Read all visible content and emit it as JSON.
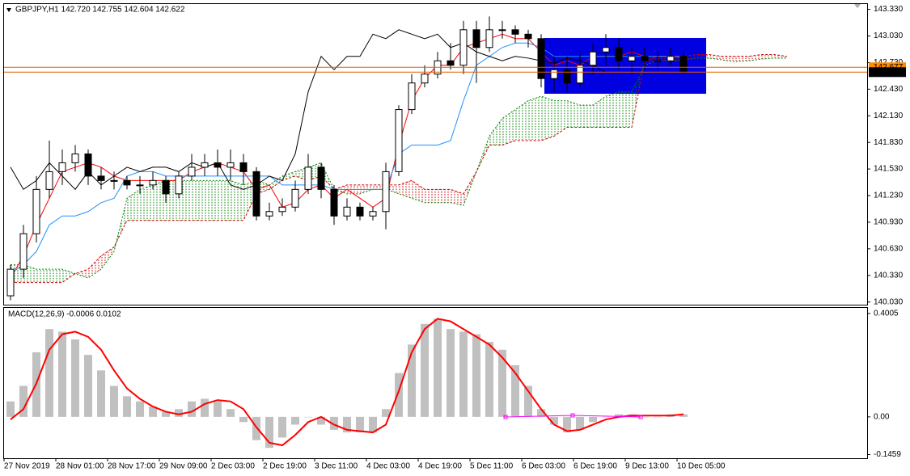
{
  "chart_data": [
    {
      "type": "candlestick",
      "title": "GBPJPY,H1  142.720 142.755 142.604 142.622",
      "categories": [
        "27 Nov 2019",
        null,
        null,
        null,
        "28 Nov 01:00",
        null,
        null,
        null,
        "28 Nov 17:00",
        null,
        null,
        null,
        "29 Nov 09:00",
        null,
        null,
        null,
        "2 Dec 03:00",
        null,
        null,
        null,
        "2 Dec 19:00",
        null,
        null,
        null,
        "3 Dec 11:00",
        null,
        null,
        null,
        "4 Dec 03:00",
        null,
        null,
        null,
        "4 Dec 19:00",
        null,
        null,
        null,
        "5 Dec 11:00",
        null,
        null,
        null,
        "6 Dec 03:00",
        null,
        null,
        null,
        "6 Dec 19:00",
        null,
        null,
        null,
        "9 Dec 13:00",
        null,
        null,
        null,
        "10 Dec 05:00",
        null,
        null,
        null,
        null,
        null,
        null,
        null,
        null
      ],
      "open": [
        140.1,
        140.4,
        140.8,
        141.3,
        141.5,
        141.6,
        141.7,
        141.45,
        141.4,
        141.4,
        141.35,
        141.35,
        141.4,
        141.25,
        141.45,
        141.55,
        141.6,
        141.55,
        141.6,
        141.5,
        141.0,
        141.05,
        141.1,
        141.3,
        141.55,
        141.3,
        141.0,
        141.1,
        141.0,
        141.05,
        141.5,
        142.2,
        142.5,
        142.6,
        142.75,
        142.7,
        143.1,
        142.9,
        143.1,
        143.1,
        143.05,
        143.0,
        142.55,
        142.65,
        142.5,
        142.7,
        142.85,
        142.9,
        142.75,
        142.8,
        142.75,
        142.75,
        142.8,
        null,
        null,
        null,
        null,
        null,
        null,
        null,
        null
      ],
      "high": [
        140.45,
        140.9,
        141.45,
        141.85,
        141.75,
        141.8,
        141.75,
        141.55,
        141.5,
        141.45,
        141.45,
        141.5,
        141.45,
        141.5,
        141.7,
        141.7,
        141.75,
        141.75,
        141.7,
        141.55,
        141.15,
        141.2,
        141.4,
        141.7,
        141.6,
        141.35,
        141.2,
        141.15,
        141.1,
        141.6,
        142.25,
        142.6,
        142.7,
        142.85,
        142.95,
        143.2,
        143.2,
        143.25,
        143.2,
        143.15,
        143.1,
        143.05,
        142.8,
        142.8,
        142.85,
        142.95,
        143.05,
        143.0,
        142.9,
        142.9,
        142.85,
        142.9,
        142.85,
        null,
        null,
        null,
        null,
        null,
        null,
        null,
        null
      ],
      "low": [
        140.05,
        140.3,
        140.7,
        141.2,
        141.35,
        141.5,
        141.35,
        141.3,
        141.3,
        141.3,
        141.25,
        141.3,
        141.15,
        141.2,
        141.4,
        141.45,
        141.45,
        141.4,
        141.35,
        140.95,
        140.95,
        141.0,
        141.05,
        141.25,
        141.2,
        140.9,
        140.95,
        140.95,
        140.95,
        140.85,
        141.45,
        142.15,
        142.45,
        142.55,
        142.65,
        142.6,
        142.5,
        142.85,
        143.0,
        142.95,
        142.9,
        142.45,
        142.4,
        142.4,
        142.45,
        142.6,
        142.7,
        142.65,
        142.6,
        142.65,
        142.65,
        142.7,
        142.6,
        null,
        null,
        null,
        null,
        null,
        null,
        null,
        null
      ],
      "close": [
        140.4,
        140.8,
        141.3,
        141.5,
        141.6,
        141.7,
        141.45,
        141.4,
        141.4,
        141.35,
        141.35,
        141.4,
        141.25,
        141.45,
        141.55,
        141.6,
        141.55,
        141.6,
        141.5,
        141.0,
        141.05,
        141.1,
        141.3,
        141.55,
        141.3,
        141.0,
        141.1,
        141.0,
        141.05,
        141.5,
        142.2,
        142.5,
        142.6,
        142.75,
        142.7,
        143.1,
        142.9,
        143.1,
        143.1,
        143.05,
        143.0,
        142.55,
        142.65,
        142.5,
        142.7,
        142.85,
        142.9,
        142.75,
        142.8,
        142.75,
        142.75,
        142.8,
        142.622,
        null,
        null,
        null,
        null,
        null,
        null,
        null,
        null
      ],
      "series": [
        {
          "color": "#ff0000",
          "values": [
            140.3,
            140.55,
            140.9,
            141.2,
            141.5,
            141.55,
            141.6,
            141.55,
            141.45,
            141.4,
            141.4,
            141.4,
            141.4,
            141.4,
            141.5,
            141.55,
            141.6,
            141.55,
            141.5,
            141.3,
            141.35,
            141.1,
            141.15,
            141.3,
            141.35,
            141.2,
            141.3,
            141.2,
            141.1,
            141.2,
            141.8,
            142.3,
            142.55,
            142.7,
            142.7,
            142.9,
            142.95,
            143.0,
            143.05,
            143.0,
            143.0,
            142.85,
            142.7,
            142.75,
            142.7,
            142.8,
            142.8,
            142.8,
            142.85,
            142.8,
            142.8,
            142.8,
            142.78,
            null,
            null,
            null,
            null,
            null,
            null,
            null,
            null
          ]
        },
        {
          "color": "#1e90ff",
          "values": [
            140.35,
            140.45,
            140.6,
            140.9,
            141.0,
            141.0,
            141.05,
            141.15,
            141.2,
            141.45,
            141.5,
            141.5,
            141.45,
            141.45,
            141.45,
            141.45,
            141.45,
            141.45,
            141.45,
            141.45,
            141.45,
            141.35,
            141.35,
            141.35,
            141.35,
            141.3,
            141.3,
            141.3,
            141.3,
            141.3,
            141.7,
            141.8,
            141.8,
            141.8,
            141.85,
            142.3,
            142.7,
            142.8,
            142.9,
            142.95,
            142.95,
            142.9,
            142.8,
            142.8,
            142.8,
            142.8,
            142.8,
            142.8,
            142.8,
            142.8,
            142.8,
            142.8,
            142.8,
            null,
            null,
            null,
            null,
            null,
            null,
            null,
            null
          ]
        },
        {
          "color": "#000000",
          "values": [
            141.55,
            141.3,
            141.4,
            141.6,
            141.45,
            141.3,
            141.5,
            141.35,
            141.45,
            141.55,
            141.5,
            141.55,
            141.55,
            141.5,
            141.6,
            141.55,
            141.6,
            141.35,
            141.3,
            141.35,
            141.45,
            141.4,
            141.7,
            142.4,
            142.8,
            142.65,
            142.8,
            142.8,
            143.05,
            143.0,
            143.1,
            143.05,
            143.0,
            143.05,
            142.9,
            142.95,
            142.85,
            142.8,
            142.75,
            142.8,
            142.78,
            142.75,
            142.72,
            142.78,
            142.75,
            142.7,
            142.62,
            null,
            null,
            null,
            null,
            null,
            null,
            null,
            null,
            null,
            null,
            null,
            null,
            null,
            null
          ]
        }
      ],
      "span_a": {
        "color": "#008000",
        "values": [
          140.45,
          140.45,
          140.4,
          140.4,
          140.4,
          140.35,
          140.3,
          140.4,
          140.6,
          141.2,
          141.3,
          141.35,
          141.4,
          141.4,
          141.4,
          141.4,
          141.4,
          141.4,
          141.35,
          141.4,
          141.35,
          141.45,
          141.5,
          141.55,
          141.6,
          141.3,
          141.25,
          141.25,
          141.3,
          141.3,
          141.25,
          141.2,
          141.15,
          141.15,
          141.15,
          141.12,
          141.5,
          141.9,
          142.1,
          142.2,
          142.3,
          142.35,
          142.3,
          142.3,
          142.25,
          142.25,
          142.35,
          142.4,
          142.4,
          142.7,
          142.75,
          142.75,
          142.76,
          142.78,
          142.78,
          142.76,
          142.74,
          142.75,
          142.77,
          142.78,
          142.78
        ]
      },
      "span_b": {
        "color": "#cc0000",
        "values": [
          140.25,
          140.25,
          140.25,
          140.25,
          140.25,
          140.35,
          140.4,
          140.55,
          140.65,
          140.95,
          140.95,
          140.95,
          140.95,
          140.95,
          140.95,
          140.95,
          140.95,
          140.95,
          140.95,
          141.25,
          141.3,
          141.4,
          141.45,
          141.4,
          141.45,
          141.3,
          141.35,
          141.35,
          141.35,
          141.35,
          141.35,
          141.4,
          141.3,
          141.3,
          141.3,
          141.25,
          141.5,
          141.8,
          141.8,
          141.85,
          141.85,
          141.85,
          141.9,
          142.0,
          142.0,
          142.0,
          142.0,
          142.0,
          142.0,
          142.75,
          142.8,
          142.8,
          142.8,
          142.82,
          142.82,
          142.8,
          142.8,
          142.8,
          142.82,
          142.82,
          142.8
        ]
      },
      "price_lines": [
        {
          "value": 142.677,
          "label": "142.677",
          "color": "#ff8c00"
        },
        {
          "value": 142.622,
          "label": "142.622",
          "color": "#000000"
        }
      ],
      "ylim": [
        140.0,
        143.39
      ],
      "yticks": [
        {
          "value": 143.33,
          "label": "143.330"
        },
        {
          "value": 143.03,
          "label": "143.030"
        },
        {
          "value": 142.73,
          "label": "142.730"
        },
        {
          "value": 142.43,
          "label": "142.430"
        },
        {
          "value": 142.13,
          "label": "142.130"
        },
        {
          "value": 141.83,
          "label": "141.830"
        },
        {
          "value": 141.53,
          "label": "141.530"
        },
        {
          "value": 141.23,
          "label": "141.230"
        },
        {
          "value": 140.93,
          "label": "140.930"
        },
        {
          "value": 140.63,
          "label": "140.630"
        },
        {
          "value": 140.33,
          "label": "140.330"
        },
        {
          "value": 140.03,
          "label": "140.030"
        }
      ]
    },
    {
      "type": "macd",
      "title": "MACD(12,26,9) -0.0006 0.0102",
      "color": "#c0c0c0",
      "values": [
        0.06,
        0.12,
        0.25,
        0.34,
        0.33,
        0.3,
        0.24,
        0.18,
        0.12,
        0.08,
        0.06,
        0.04,
        0.02,
        0.03,
        0.06,
        0.07,
        0.06,
        0.03,
        -0.02,
        -0.09,
        -0.12,
        -0.08,
        -0.03,
        0.0,
        -0.03,
        -0.05,
        -0.06,
        -0.06,
        -0.06,
        0.03,
        0.17,
        0.28,
        0.36,
        0.38,
        0.34,
        0.33,
        0.32,
        0.29,
        0.26,
        0.2,
        0.12,
        0.03,
        -0.03,
        -0.06,
        -0.05,
        -0.02,
        0.0,
        0.01,
        0.01,
        0.0,
        0.0,
        0.01,
        0.01,
        null,
        null,
        null,
        null,
        null,
        null,
        null,
        null
      ],
      "series": [
        {
          "color": "#ff0000",
          "values": [
            -0.01,
            0.03,
            0.13,
            0.26,
            0.32,
            0.33,
            0.31,
            0.26,
            0.18,
            0.11,
            0.07,
            0.04,
            0.02,
            0.01,
            0.02,
            0.05,
            0.065,
            0.06,
            0.03,
            -0.04,
            -0.1,
            -0.11,
            -0.07,
            -0.02,
            0.0,
            -0.03,
            -0.05,
            -0.055,
            -0.06,
            -0.03,
            0.1,
            0.25,
            0.34,
            0.38,
            0.37,
            0.34,
            0.31,
            0.28,
            0.23,
            0.17,
            0.1,
            0.03,
            -0.03,
            -0.055,
            -0.05,
            -0.03,
            -0.01,
            0.0,
            0.005,
            0.005,
            0.005,
            0.005,
            0.01,
            null,
            null,
            null,
            null,
            null,
            null,
            null,
            null
          ]
        }
      ],
      "ylim": [
        -0.16,
        0.422
      ],
      "yticks": [
        0.4005,
        {
          "value": 0,
          "label": "0.00"
        },
        -0.1459
      ]
    }
  ]
}
